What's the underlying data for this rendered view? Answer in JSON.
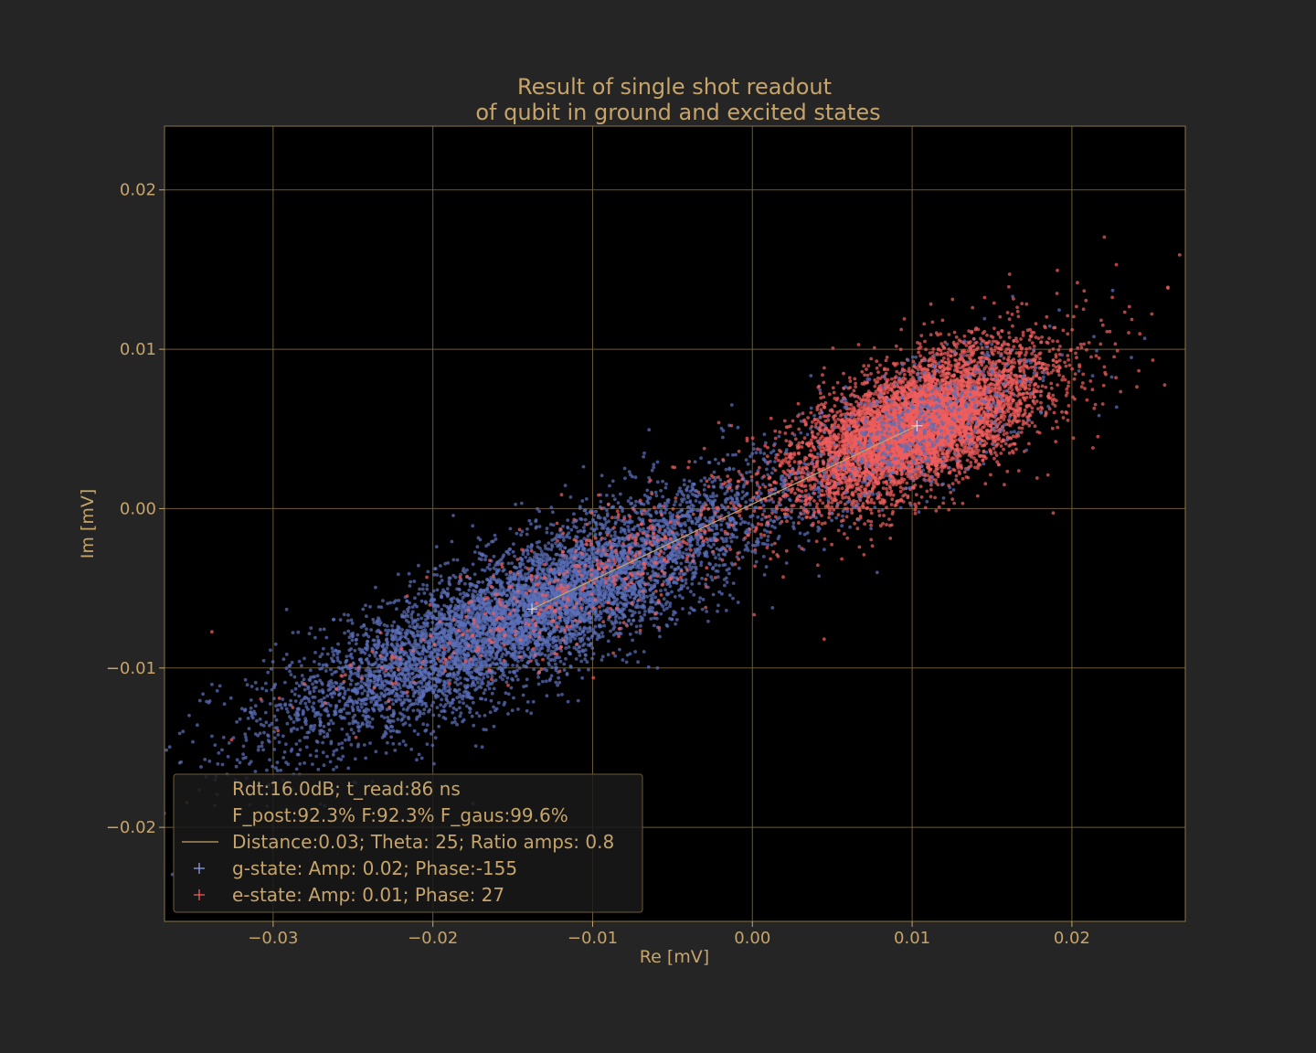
{
  "chart_data": {
    "type": "scatter",
    "title": [
      "Result of single shot readout",
      "of qubit in ground and excited states"
    ],
    "xlabel": "Re [mV]",
    "ylabel": "Im [mV]",
    "xlim": [
      -0.0368,
      0.0271
    ],
    "ylim": [
      -0.0259,
      0.024
    ],
    "xticks": [
      -0.03,
      -0.02,
      -0.01,
      0.0,
      0.01,
      0.02
    ],
    "xtick_labels": [
      "−0.03",
      "−0.02",
      "−0.01",
      "0.00",
      "0.01",
      "0.02"
    ],
    "yticks": [
      -0.02,
      -0.01,
      0.0,
      0.01,
      0.02
    ],
    "ytick_labels": [
      "−0.02",
      "−0.01",
      "0.00",
      "0.01",
      "0.02"
    ],
    "grid": true,
    "legend_placement": "lower-left",
    "colors": {
      "figure_bg": "#252525",
      "axes_bg": "#000000",
      "text": "#c6a46a",
      "grid": "#6b5a34",
      "g_state": "#5b6fb8",
      "e_state": "#ee5e5e",
      "distance_line": "#c6a46a"
    },
    "series": [
      {
        "key": "g_state",
        "cloud": {
          "center": [
            -0.0138,
            -0.0063
          ],
          "spread_along": 0.0082,
          "spread_across": 0.0019,
          "angle_deg": 25,
          "count": 7000,
          "outlier_fraction": 0.03
        }
      },
      {
        "key": "e_state",
        "cloud": {
          "center": [
            0.0103,
            0.0052
          ],
          "spread_along": 0.004,
          "spread_across": 0.0017,
          "angle_deg": 25,
          "count": 6500,
          "outlier_fraction": 0.05
        }
      }
    ],
    "distance_line": {
      "from": [
        -0.0138,
        -0.0063
      ],
      "to": [
        0.0103,
        0.0052
      ]
    },
    "centroids": [
      {
        "key": "g_state",
        "x": -0.0138,
        "y": -0.0063
      },
      {
        "key": "e_state",
        "x": 0.0103,
        "y": 0.0052
      }
    ],
    "legend": [
      {
        "symbol": "none",
        "label": "Rdt:16.0dB; t_read:86 ns"
      },
      {
        "symbol": "none",
        "label": "F_post:92.3% F:92.3% F_gaus:99.6%"
      },
      {
        "symbol": "line",
        "label": "Distance:0.03; Theta: 25; Ratio amps:  0.8"
      },
      {
        "symbol": "plus-blue",
        "label": "g-state: Amp: 0.02; Phase:-155"
      },
      {
        "symbol": "plus-red",
        "label": "e-state: Amp: 0.01; Phase: 27"
      }
    ]
  }
}
